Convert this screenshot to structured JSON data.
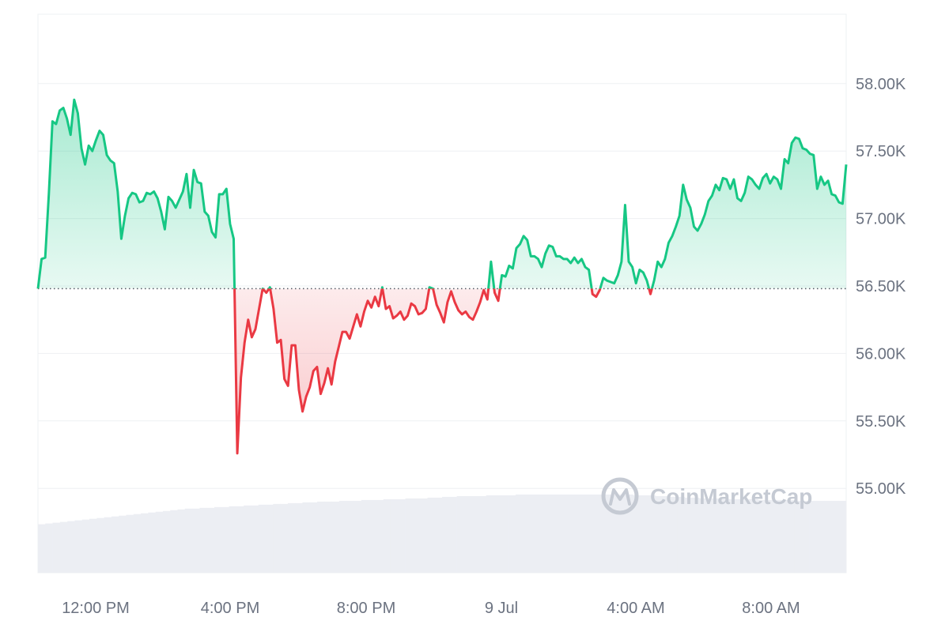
{
  "chart_data": {
    "type": "area",
    "title": "",
    "xlabel": "",
    "ylabel": "",
    "baseline": 56480,
    "ylim": [
      54500,
      58600
    ],
    "y_ticks": [
      {
        "value": 58000,
        "label": "58.00K"
      },
      {
        "value": 57500,
        "label": "57.50K"
      },
      {
        "value": 57000,
        "label": "57.00K"
      },
      {
        "value": 56500,
        "label": "56.50K"
      },
      {
        "value": 56000,
        "label": "56.00K"
      },
      {
        "value": 55500,
        "label": "55.50K"
      },
      {
        "value": 55000,
        "label": "55.00K"
      }
    ],
    "x_ticks": [
      "12:00 PM",
      "4:00 PM",
      "8:00 PM",
      "9 Jul",
      "4:00 AM",
      "8:00 AM"
    ],
    "up_color": "#16c784",
    "down_color": "#ea3943",
    "series": [
      {
        "values": [
          56480,
          56700,
          56710,
          57180,
          57720,
          57700,
          57800,
          57820,
          57740,
          57620,
          57880,
          57780,
          57520,
          57400,
          57540,
          57500,
          57580,
          57650,
          57620,
          57470,
          57430,
          57410,
          57200,
          56850,
          57020,
          57150,
          57190,
          57180,
          57120,
          57130,
          57190,
          57180,
          57200,
          57150,
          57050,
          56920,
          57160,
          57130,
          57080,
          57140,
          57200,
          57330,
          57080,
          57360,
          57270,
          57260,
          57050,
          57020,
          56900,
          56860,
          57180,
          57180,
          57220,
          56960,
          56850,
          55260,
          55820,
          56080,
          56250,
          56120,
          56180,
          56330,
          56480,
          56450,
          56490,
          56330,
          56080,
          56100,
          55810,
          55760,
          56060,
          56060,
          55730,
          55570,
          55680,
          55750,
          55870,
          55900,
          55700,
          55780,
          55890,
          55770,
          55940,
          56050,
          56160,
          56160,
          56110,
          56200,
          56290,
          56200,
          56310,
          56390,
          56340,
          56420,
          56350,
          56490,
          56330,
          56350,
          56260,
          56280,
          56310,
          56250,
          56280,
          56370,
          56350,
          56290,
          56300,
          56330,
          56490,
          56480,
          56360,
          56300,
          56230,
          56380,
          56460,
          56380,
          56320,
          56290,
          56310,
          56270,
          56250,
          56310,
          56380,
          56470,
          56400,
          56680,
          56450,
          56390,
          56580,
          56570,
          56650,
          56630,
          56780,
          56810,
          56870,
          56840,
          56720,
          56720,
          56700,
          56640,
          56740,
          56800,
          56790,
          56720,
          56720,
          56700,
          56700,
          56670,
          56710,
          56670,
          56700,
          56640,
          56620,
          56440,
          56420,
          56470,
          56560,
          56540,
          56530,
          56520,
          56580,
          56680,
          57100,
          56680,
          56640,
          56520,
          56620,
          56600,
          56540,
          56440,
          56540,
          56680,
          56640,
          56700,
          56820,
          56870,
          56940,
          57020,
          57250,
          57140,
          57080,
          56940,
          56910,
          56960,
          57030,
          57130,
          57170,
          57250,
          57210,
          57300,
          57290,
          57220,
          57290,
          57150,
          57130,
          57190,
          57310,
          57290,
          57250,
          57220,
          57300,
          57330,
          57260,
          57310,
          57290,
          57220,
          57440,
          57410,
          57560,
          57600,
          57590,
          57520,
          57510,
          57480,
          57470,
          57220,
          57310,
          57250,
          57280,
          57180,
          57170,
          57120,
          57110,
          57400
        ]
      }
    ],
    "volume_relative": [
      0.62,
      0.63,
      0.64,
      0.65,
      0.66,
      0.67,
      0.68,
      0.69,
      0.7,
      0.71,
      0.72,
      0.73,
      0.74,
      0.75,
      0.76,
      0.77,
      0.78,
      0.79,
      0.8,
      0.81,
      0.82,
      0.82,
      0.83,
      0.83,
      0.84,
      0.84,
      0.85,
      0.85,
      0.86,
      0.86,
      0.87,
      0.87,
      0.88,
      0.88,
      0.89,
      0.89,
      0.9,
      0.9,
      0.91,
      0.91,
      0.91,
      0.92,
      0.92,
      0.92,
      0.93,
      0.93,
      0.93,
      0.94,
      0.94,
      0.94,
      0.95,
      0.95,
      0.95,
      0.96,
      0.96,
      0.97,
      0.97,
      0.98,
      0.98,
      0.98,
      0.98,
      0.99,
      0.99,
      0.99,
      0.99,
      1.0,
      1.0,
      1.0,
      1.0,
      1.0,
      1.0,
      1.0,
      1.0,
      1.0,
      1.0,
      1.0,
      1.0,
      1.0,
      1.0,
      1.0,
      1.0,
      0.99,
      0.99,
      0.99,
      0.98,
      0.98,
      0.97,
      0.97,
      0.96,
      0.96,
      0.95,
      0.95,
      0.95,
      0.95,
      0.94,
      0.94,
      0.94,
      0.94,
      0.93,
      0.93,
      0.93,
      0.93,
      0.93,
      0.92,
      0.92,
      0.92,
      0.92,
      0.92,
      0.92,
      0.92
    ],
    "watermark": "CoinMarketCap"
  }
}
